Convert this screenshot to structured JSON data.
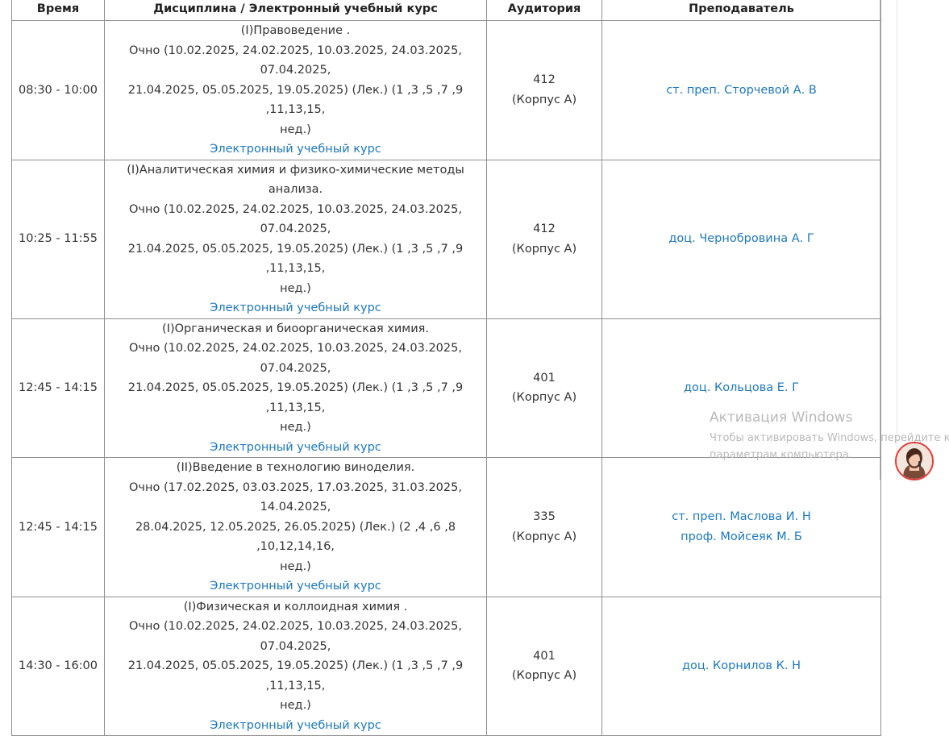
{
  "table": {
    "headers": {
      "time": "Время",
      "discipline": "Дисциплина / Электронный учебный курс",
      "room": "Аудитория",
      "teacher": "Преподаватель"
    },
    "rows": [
      {
        "time": "08:30 - 10:00",
        "title": "(I)Правоведение .",
        "dates1": "Очно (10.02.2025, 24.02.2025, 10.03.2025, 24.03.2025, 07.04.2025,",
        "dates2": "21.04.2025, 05.05.2025, 19.05.2025) (Лек.) (1 ,3 ,5 ,7 ,9 ,11,13,15,",
        "dates3": "нед.)",
        "course_link": "Электронный учебный курс",
        "room_number": "412",
        "room_building": "(Корпус А)",
        "teachers": [
          "ст. преп. Сторчевой А. В"
        ]
      },
      {
        "time": "10:25 - 11:55",
        "title": "(I)Аналитическая химия и физико-химические методы анализа.",
        "dates1": "Очно (10.02.2025, 24.02.2025, 10.03.2025, 24.03.2025, 07.04.2025,",
        "dates2": "21.04.2025, 05.05.2025, 19.05.2025) (Лек.) (1 ,3 ,5 ,7 ,9 ,11,13,15,",
        "dates3": "нед.)",
        "course_link": "Электронный учебный курс",
        "room_number": "412",
        "room_building": "(Корпус А)",
        "teachers": [
          "доц. Чернобровина А. Г"
        ]
      },
      {
        "time": "12:45 - 14:15",
        "title": "(I)Органическая и биоорганическая химия.",
        "dates1": "Очно (10.02.2025, 24.02.2025, 10.03.2025, 24.03.2025, 07.04.2025,",
        "dates2": "21.04.2025, 05.05.2025, 19.05.2025) (Лек.) (1 ,3 ,5 ,7 ,9 ,11,13,15,",
        "dates3": "нед.)",
        "course_link": "Электронный учебный курс",
        "room_number": "401",
        "room_building": "(Корпус А)",
        "teachers": [
          "доц. Кольцова Е. Г"
        ]
      },
      {
        "time": "12:45 - 14:15",
        "title": "(II)Введение в технологию виноделия.",
        "dates1": "Очно (17.02.2025, 03.03.2025, 17.03.2025, 31.03.2025, 14.04.2025,",
        "dates2": "28.04.2025, 12.05.2025, 26.05.2025) (Лек.) (2 ,4 ,6 ,8 ,10,12,14,16,",
        "dates3": "нед.)",
        "course_link": "Электронный учебный курс",
        "room_number": "335",
        "room_building": "(Корпус А)",
        "teachers": [
          "ст. преп. Маслова И. Н",
          "проф. Мойсеяк М. Б"
        ]
      },
      {
        "time": "14:30 - 16:00",
        "title": "(I)Физическая и коллоидная химия .",
        "dates1": "Очно (10.02.2025, 24.02.2025, 10.03.2025, 24.03.2025, 07.04.2025,",
        "dates2": "21.04.2025, 05.05.2025, 19.05.2025) (Лек.) (1 ,3 ,5 ,7 ,9 ,11,13,15,",
        "dates3": "нед.)",
        "course_link": "Электронный учебный курс",
        "room_number": "401",
        "room_building": "(Корпус А)",
        "teachers": [
          "доц. Корнилов К. Н"
        ]
      }
    ]
  },
  "activation": {
    "title": "Активация Windows",
    "line1": "Чтобы активировать Windows, перейдите к",
    "line2": "параметрам компьютера."
  },
  "colors": {
    "link": "#1d78bf",
    "border": "#8f8f8f",
    "watermark": "#b9b9b9"
  }
}
